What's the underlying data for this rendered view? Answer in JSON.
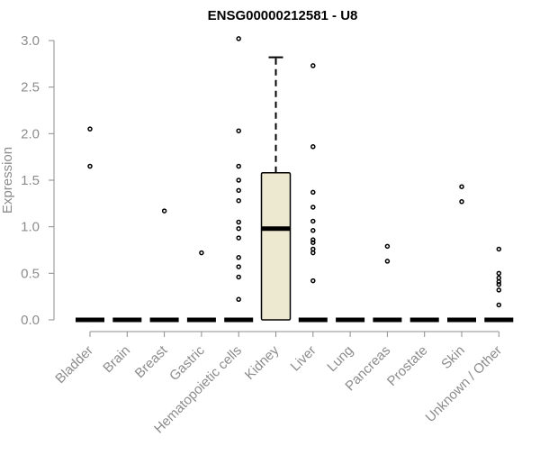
{
  "chart_data": {
    "type": "box",
    "title": "ENSG00000212581 - U8",
    "xlabel": "",
    "ylabel": "Expression",
    "ylim": [
      0,
      3.0
    ],
    "yticks": [
      "0.0",
      "0.5",
      "1.0",
      "1.5",
      "2.0",
      "2.5",
      "3.0"
    ],
    "grid": false,
    "categories": [
      "Bladder",
      "Brain",
      "Breast",
      "Gastric",
      "Hematopoietic cells",
      "Kidney",
      "Liver",
      "Lung",
      "Pancreas",
      "Prostate",
      "Skin",
      "Unknown / Other"
    ],
    "boxes": [
      {
        "category": "Bladder",
        "q1": 0,
        "median": 0,
        "q3": 0,
        "whisker_low": 0,
        "whisker_high": 0,
        "outliers": [
          2.05,
          1.65
        ]
      },
      {
        "category": "Brain",
        "q1": 0,
        "median": 0,
        "q3": 0,
        "whisker_low": 0,
        "whisker_high": 0,
        "outliers": []
      },
      {
        "category": "Breast",
        "q1": 0,
        "median": 0,
        "q3": 0,
        "whisker_low": 0,
        "whisker_high": 0,
        "outliers": [
          1.17
        ]
      },
      {
        "category": "Gastric",
        "q1": 0,
        "median": 0,
        "q3": 0,
        "whisker_low": 0,
        "whisker_high": 0,
        "outliers": [
          0.72
        ]
      },
      {
        "category": "Hematopoietic cells",
        "q1": 0,
        "median": 0,
        "q3": 0,
        "whisker_low": 0,
        "whisker_high": 0,
        "outliers": [
          3.02,
          2.03,
          1.65,
          1.5,
          1.39,
          1.28,
          1.05,
          0.98,
          0.88,
          0.67,
          0.57,
          0.46,
          0.22
        ]
      },
      {
        "category": "Kidney",
        "q1": 0,
        "median": 0.98,
        "q3": 1.58,
        "whisker_low": 0,
        "whisker_high": 2.82,
        "outliers": []
      },
      {
        "category": "Liver",
        "q1": 0,
        "median": 0,
        "q3": 0,
        "whisker_low": 0,
        "whisker_high": 0,
        "outliers": [
          2.73,
          1.86,
          1.37,
          1.21,
          1.06,
          0.96,
          0.86,
          0.83,
          0.76,
          0.72,
          0.42
        ]
      },
      {
        "category": "Lung",
        "q1": 0,
        "median": 0,
        "q3": 0,
        "whisker_low": 0,
        "whisker_high": 0,
        "outliers": []
      },
      {
        "category": "Pancreas",
        "q1": 0,
        "median": 0,
        "q3": 0,
        "whisker_low": 0,
        "whisker_high": 0,
        "outliers": [
          0.79,
          0.63
        ]
      },
      {
        "category": "Prostate",
        "q1": 0,
        "median": 0,
        "q3": 0,
        "whisker_low": 0,
        "whisker_high": 0,
        "outliers": []
      },
      {
        "category": "Skin",
        "q1": 0,
        "median": 0,
        "q3": 0,
        "whisker_low": 0,
        "whisker_high": 0,
        "outliers": [
          1.43,
          1.27
        ]
      },
      {
        "category": "Unknown / Other",
        "q1": 0,
        "median": 0,
        "q3": 0,
        "whisker_low": 0,
        "whisker_high": 0,
        "outliers": [
          0.76,
          0.5,
          0.45,
          0.41,
          0.38,
          0.32,
          0.16
        ]
      }
    ],
    "box_fill": "#ede8d0",
    "axis_color": "#8c8c8c"
  }
}
